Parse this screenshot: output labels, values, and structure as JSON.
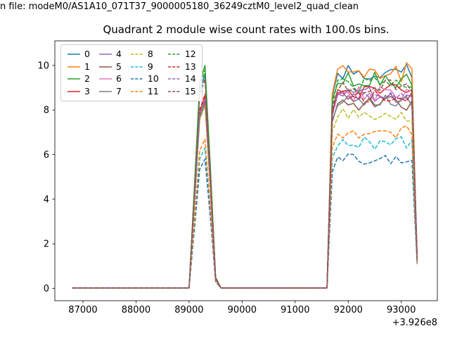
{
  "header": {
    "file_line": "n file: modeM0/AS1A10_071T37_9000005180_36249cztM0_level2_quad_clean"
  },
  "chart_data": {
    "type": "line",
    "title": "Quadrant 2 module wise count rates with 100.0s bins.",
    "xlabel": "",
    "ylabel": "",
    "x_offset_label": "+3.926e8",
    "xlim": [
      86470,
      93680
    ],
    "ylim": [
      -0.55,
      11.1
    ],
    "x_ticks": [
      87000,
      88000,
      89000,
      90000,
      91000,
      92000,
      93000
    ],
    "y_ticks": [
      0,
      2,
      4,
      6,
      8,
      10
    ],
    "grid": false,
    "legend_position": "upper left",
    "legend_ncol": 4,
    "bin_seconds": 100,
    "bins": {
      "start": 86800,
      "step": 100,
      "end": 93300
    },
    "profile": {
      "baseline": 0.02,
      "zero_until": 89000,
      "spike_fracs": [
        [
          89100,
          0.45
        ],
        [
          89200,
          0.92
        ],
        [
          89300,
          1.0
        ],
        [
          89400,
          0.55
        ],
        [
          89500,
          0.05
        ]
      ],
      "flat_from": 89600,
      "flat_to": 91600,
      "ramp_bin": 91700,
      "ramp_factor": 0.9,
      "plateau_to": 93200
    },
    "series": [
      {
        "label": "0",
        "color": "#1f77b4",
        "dashed": false,
        "peak": 9.6,
        "plateau": 9.6,
        "noise": 0.45,
        "last": 1.35
      },
      {
        "label": "1",
        "color": "#ff7f0e",
        "dashed": false,
        "peak": 8.6,
        "plateau": 9.7,
        "noise": 0.45,
        "last": 1.3
      },
      {
        "label": "2",
        "color": "#2ca02c",
        "dashed": false,
        "peak": 10.0,
        "plateau": 9.4,
        "noise": 0.4,
        "last": 1.3
      },
      {
        "label": "3",
        "color": "#d62728",
        "dashed": false,
        "peak": 8.6,
        "plateau": 8.8,
        "noise": 0.35,
        "last": 1.25
      },
      {
        "label": "4",
        "color": "#9467bd",
        "dashed": false,
        "peak": 8.4,
        "plateau": 8.7,
        "noise": 0.35,
        "last": 1.25
      },
      {
        "label": "5",
        "color": "#8c564b",
        "dashed": false,
        "peak": 8.3,
        "plateau": 8.3,
        "noise": 0.35,
        "last": 1.2
      },
      {
        "label": "6",
        "color": "#e377c2",
        "dashed": false,
        "peak": 8.5,
        "plateau": 8.7,
        "noise": 0.35,
        "last": 1.25
      },
      {
        "label": "7",
        "color": "#7f7f7f",
        "dashed": false,
        "peak": 8.4,
        "plateau": 8.4,
        "noise": 0.3,
        "last": 1.2
      },
      {
        "label": "8",
        "color": "#bcbd22",
        "dashed": true,
        "peak": 8.2,
        "plateau": 7.8,
        "noise": 0.3,
        "last": 1.15
      },
      {
        "label": "9",
        "color": "#17becf",
        "dashed": true,
        "peak": 6.3,
        "plateau": 6.5,
        "noise": 0.3,
        "last": 1.1
      },
      {
        "label": "10",
        "color": "#1f77b4",
        "dashed": true,
        "peak": 5.8,
        "plateau": 5.8,
        "noise": 0.25,
        "last": 1.05
      },
      {
        "label": "11",
        "color": "#ff7f0e",
        "dashed": true,
        "peak": 6.7,
        "plateau": 7.0,
        "noise": 0.3,
        "last": 1.1
      },
      {
        "label": "12",
        "color": "#2ca02c",
        "dashed": true,
        "peak": 9.8,
        "plateau": 9.1,
        "noise": 0.35,
        "last": 1.3
      },
      {
        "label": "13",
        "color": "#d62728",
        "dashed": true,
        "peak": 8.7,
        "plateau": 8.7,
        "noise": 0.35,
        "last": 1.25
      },
      {
        "label": "14",
        "color": "#9467bd",
        "dashed": true,
        "peak": 8.5,
        "plateau": 8.6,
        "noise": 0.3,
        "last": 1.25
      },
      {
        "label": "15",
        "color": "#8c564b",
        "dashed": true,
        "peak": 9.4,
        "plateau": 9.0,
        "noise": 0.35,
        "last": 1.3
      }
    ]
  }
}
